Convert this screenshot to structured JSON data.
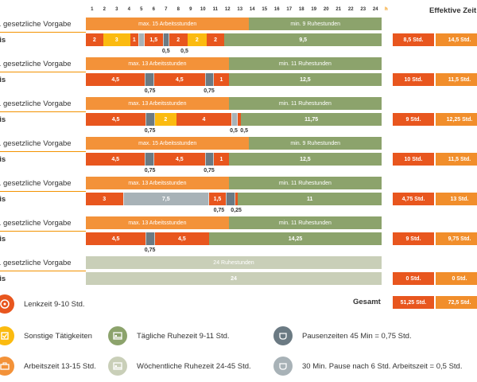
{
  "colors": {
    "work": "#e8561e",
    "work_light": "#f39239",
    "other": "#fbbb10",
    "rest": "#8ca36c",
    "weekly_rest": "#c9cfb8",
    "break": "#6b7a83",
    "break_light": "#a8b2b7",
    "eff_dark": "#e8561e",
    "eff_light": "#f18e2b"
  },
  "header": {
    "hours": [
      "1",
      "2",
      "3",
      "4",
      "5",
      "6",
      "7",
      "8",
      "9",
      "10",
      "11",
      "12",
      "13",
      "14",
      "15",
      "16",
      "17",
      "18",
      "19",
      "20",
      "21",
      "22",
      "23",
      "24"
    ],
    "h_label": "h",
    "effective_title": "Effektive Zeit"
  },
  "chart_data": {
    "type": "bar",
    "x_unit": "h",
    "xlim": [
      0,
      24
    ],
    "days": [
      {
        "vorgabe_label": "x. gesetzliche Vorgabe",
        "praxis_label": "xis",
        "vorgabe": [
          {
            "hours": 13.25,
            "kind": "work_light",
            "label": "max. 15 Arbeitsstunden"
          },
          {
            "hours": 10.75,
            "kind": "rest",
            "label": "min. 9 Ruhestunden"
          }
        ],
        "praxis": [
          {
            "hours": 1.4,
            "kind": "work",
            "label": "2"
          },
          {
            "hours": 2.2,
            "kind": "other",
            "label": "3"
          },
          {
            "hours": 0.65,
            "kind": "work",
            "label": "1"
          },
          {
            "hours": 0.5,
            "kind": "break_light",
            "label": ""
          },
          {
            "hours": 1.5,
            "kind": "work",
            "label": "1,5"
          },
          {
            "hours": 0.5,
            "kind": "break",
            "label": ""
          },
          {
            "hours": 1.5,
            "kind": "work",
            "label": "2"
          },
          {
            "hours": 1.55,
            "kind": "other",
            "label": "2"
          },
          {
            "hours": 1.45,
            "kind": "work",
            "label": "2"
          },
          {
            "hours": 12.75,
            "kind": "rest",
            "label": "9,5"
          }
        ],
        "pause_labels": [
          {
            "at": 6.5,
            "label": "0,5"
          },
          {
            "at": 8.0,
            "label": "0,5"
          }
        ],
        "eff": [
          "8,5 Std.",
          "14,5 Std."
        ]
      },
      {
        "vorgabe_label": "x. gesetzliche Vorgabe",
        "praxis_label": "xis",
        "vorgabe": [
          {
            "hours": 11.6,
            "kind": "work_light",
            "label": "max. 13 Arbeitsstunden"
          },
          {
            "hours": 12.4,
            "kind": "rest",
            "label": "min. 11 Ruhestunden"
          }
        ],
        "praxis": [
          {
            "hours": 4.8,
            "kind": "work",
            "label": "4,5"
          },
          {
            "hours": 0.75,
            "kind": "break",
            "label": ""
          },
          {
            "hours": 4.1,
            "kind": "work",
            "label": "4,5"
          },
          {
            "hours": 0.75,
            "kind": "break",
            "label": ""
          },
          {
            "hours": 1.2,
            "kind": "work",
            "label": "1"
          },
          {
            "hours": 12.4,
            "kind": "rest",
            "label": "12,5"
          }
        ],
        "pause_labels": [
          {
            "at": 5.2,
            "label": "0,75"
          },
          {
            "at": 10.0,
            "label": "0,75"
          }
        ],
        "eff": [
          "10 Std.",
          "11,5 Std."
        ]
      },
      {
        "vorgabe_label": "x. gesetzliche Vorgabe",
        "praxis_label": "xis",
        "vorgabe": [
          {
            "hours": 11.6,
            "kind": "work_light",
            "label": "max. 13 Arbeitsstunden"
          },
          {
            "hours": 12.4,
            "kind": "rest",
            "label": "min. 11 Ruhestunden"
          }
        ],
        "praxis": [
          {
            "hours": 4.85,
            "kind": "work",
            "label": "4,5"
          },
          {
            "hours": 0.75,
            "kind": "break",
            "label": ""
          },
          {
            "hours": 1.75,
            "kind": "other",
            "label": "2"
          },
          {
            "hours": 4.45,
            "kind": "work",
            "label": "4"
          },
          {
            "hours": 0.5,
            "kind": "break_light",
            "label": ""
          },
          {
            "hours": 0.3,
            "kind": "work",
            "label": ""
          },
          {
            "hours": 11.4,
            "kind": "rest",
            "label": "11,75"
          }
        ],
        "pause_labels": [
          {
            "at": 5.2,
            "label": "0,75"
          },
          {
            "at": 12.0,
            "label": "0,5"
          },
          {
            "at": 12.85,
            "label": "0,5"
          }
        ],
        "eff": [
          "9 Std.",
          "12,25 Std."
        ]
      },
      {
        "vorgabe_label": "x. gesetzliche Vorgabe",
        "praxis_label": "xis",
        "vorgabe": [
          {
            "hours": 13.25,
            "kind": "work_light",
            "label": "max. 15 Arbeitsstunden"
          },
          {
            "hours": 10.75,
            "kind": "rest",
            "label": "min. 9 Ruhestunden"
          }
        ],
        "praxis": [
          {
            "hours": 4.8,
            "kind": "work",
            "label": "4,5"
          },
          {
            "hours": 0.75,
            "kind": "break",
            "label": ""
          },
          {
            "hours": 4.1,
            "kind": "work",
            "label": "4,5"
          },
          {
            "hours": 0.75,
            "kind": "break",
            "label": ""
          },
          {
            "hours": 1.2,
            "kind": "work",
            "label": "1"
          },
          {
            "hours": 12.4,
            "kind": "rest",
            "label": "12,5"
          }
        ],
        "pause_labels": [
          {
            "at": 5.2,
            "label": "0,75"
          },
          {
            "at": 10.0,
            "label": "0,75"
          }
        ],
        "eff": [
          "10 Std.",
          "11,5 Std."
        ]
      },
      {
        "vorgabe_label": "x. gesetzliche Vorgabe",
        "praxis_label": "xis",
        "vorgabe": [
          {
            "hours": 11.6,
            "kind": "work_light",
            "label": "max. 13 Arbeitsstunden"
          },
          {
            "hours": 12.4,
            "kind": "rest",
            "label": "min. 11 Ruhestunden"
          }
        ],
        "praxis": [
          {
            "hours": 3.0,
            "kind": "work",
            "label": "3"
          },
          {
            "hours": 7.0,
            "kind": "break_light",
            "label": "7,5"
          },
          {
            "hours": 1.35,
            "kind": "work",
            "label": "1,5"
          },
          {
            "hours": 0.75,
            "kind": "break",
            "label": ""
          },
          {
            "hours": 0.25,
            "kind": "work",
            "label": ""
          },
          {
            "hours": 11.65,
            "kind": "rest",
            "label": "11"
          }
        ],
        "pause_labels": [
          {
            "at": 10.8,
            "label": "0,75"
          },
          {
            "at": 12.2,
            "label": "0,25"
          }
        ],
        "eff": [
          "4,75 Std.",
          "13 Std."
        ]
      },
      {
        "vorgabe_label": "x. gesetzliche Vorgabe",
        "praxis_label": "xis",
        "vorgabe": [
          {
            "hours": 11.6,
            "kind": "work_light",
            "label": "max. 13 Arbeitsstunden"
          },
          {
            "hours": 12.4,
            "kind": "rest",
            "label": "min. 11 Ruhestunden"
          }
        ],
        "praxis": [
          {
            "hours": 4.85,
            "kind": "work",
            "label": "4,5"
          },
          {
            "hours": 0.75,
            "kind": "break",
            "label": ""
          },
          {
            "hours": 4.4,
            "kind": "work",
            "label": "4,5"
          },
          {
            "hours": 14.0,
            "kind": "rest",
            "label": "14,25"
          }
        ],
        "pause_labels": [
          {
            "at": 5.2,
            "label": "0,75"
          }
        ],
        "eff": [
          "9 Std.",
          "9,75 Std."
        ]
      },
      {
        "vorgabe_label": "x. gesetzliche Vorgabe",
        "praxis_label": "xis",
        "vorgabe": [
          {
            "hours": 24,
            "kind": "weekly_rest",
            "label": "24 Ruhestunden"
          }
        ],
        "praxis": [
          {
            "hours": 24,
            "kind": "weekly_rest",
            "label": "24"
          }
        ],
        "pause_labels": [],
        "eff": [
          "0 Std.",
          "0 Std."
        ]
      }
    ],
    "gesamt_label": "Gesamt",
    "gesamt": [
      "51,25 Std.",
      "72,5 Std."
    ]
  },
  "legend": [
    {
      "label": "Lenkzeit 9-10 Std.",
      "kind": "work",
      "icon": "steering-icon"
    },
    {
      "label": "Sonstige Tätigkeiten",
      "kind": "other",
      "icon": "tasks-icon"
    },
    {
      "label": "Tägliche Ruhezeit 9-11 Std.",
      "kind": "rest",
      "icon": "bed-icon"
    },
    {
      "label": "Pausenzeiten 45 Min = 0,75 Std.",
      "kind": "break",
      "icon": "pause-icon"
    },
    {
      "label": "Arbeitszeit 13-15 Std.",
      "kind": "work_light",
      "icon": "briefcase-icon"
    },
    {
      "label": "Wöchentliche Ruhezeit 24-45 Std.",
      "kind": "weekly_rest",
      "icon": "bed-icon"
    },
    {
      "label": "30 Min. Pause nach 6 Std. Arbeitszeit = 0,5 Std.",
      "kind": "break_light",
      "icon": "pause-icon"
    }
  ]
}
